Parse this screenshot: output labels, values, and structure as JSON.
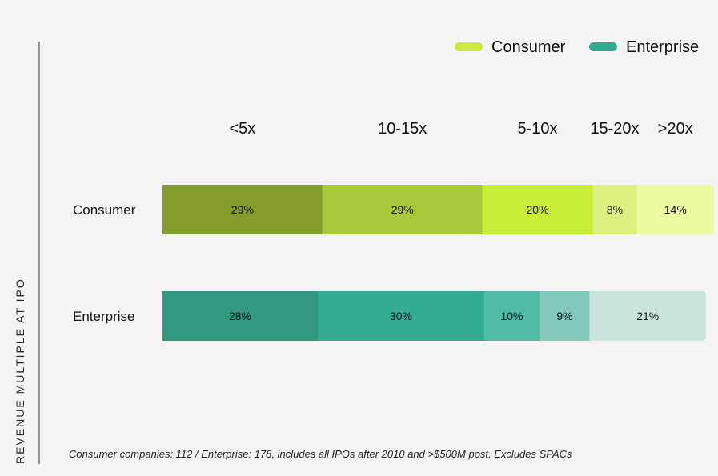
{
  "chart_data": {
    "type": "bar",
    "orientation": "horizontal",
    "stacked": true,
    "normalized": true,
    "ylabel": "REVENUE MULTIPLE AT IPO",
    "rows": [
      "Consumer",
      "Enterprise"
    ],
    "legend": [
      {
        "name": "Consumer",
        "color": "#cbe83f"
      },
      {
        "name": "Enterprise",
        "color": "#33a98f"
      }
    ],
    "category_labels": [
      "<5x",
      "10-15x",
      "5-10x",
      "15-20x",
      ">20x"
    ],
    "series": [
      {
        "name": "Consumer",
        "values": [
          29,
          29,
          20,
          8,
          14
        ],
        "labels": [
          "29%",
          "29%",
          "20%",
          "8%",
          "14%"
        ],
        "colors": [
          "#859c2e",
          "#a8c83a",
          "#c9ee36",
          "#dbf07e",
          "#eafba2"
        ]
      },
      {
        "name": "Enterprise",
        "values": [
          28,
          30,
          10,
          9,
          21
        ],
        "labels": [
          "28%",
          "30%",
          "10%",
          "9%",
          "21%"
        ],
        "colors": [
          "#329880",
          "#33ad92",
          "#50bca5",
          "#83cabb",
          "#c9e4dc"
        ]
      }
    ]
  },
  "footnote": "Consumer companies: 112 / Enterprise: 178, includes all IPOs after 2010 and >$500M post. Excludes SPACs"
}
